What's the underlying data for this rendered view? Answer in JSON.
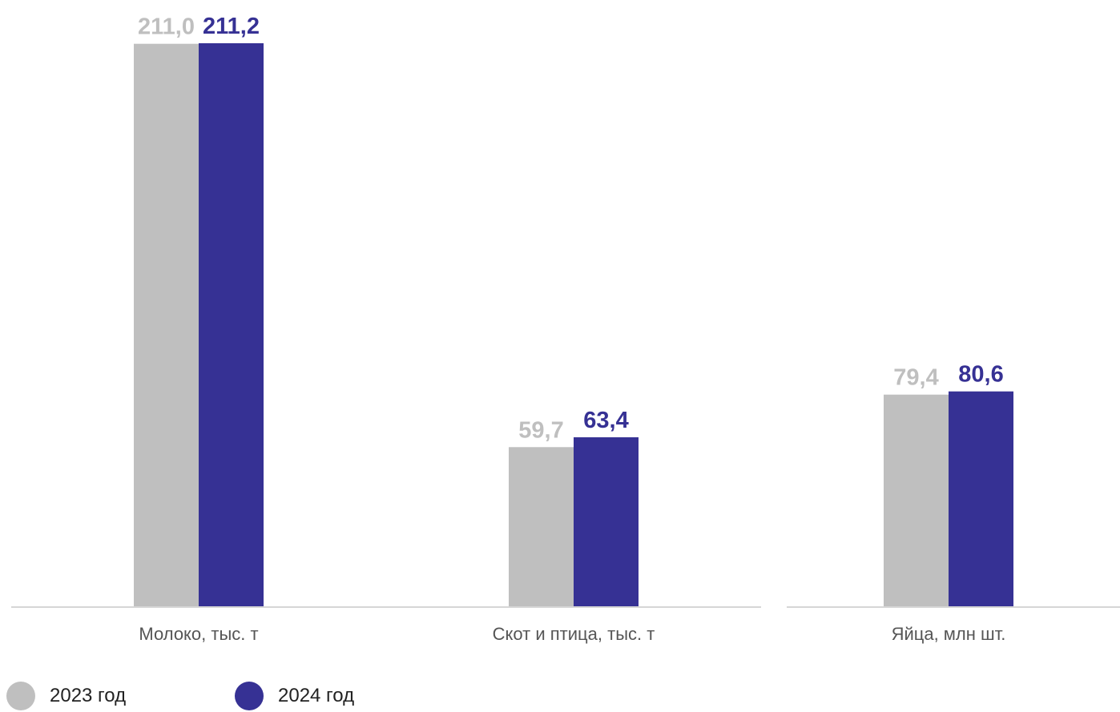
{
  "chart_data": {
    "type": "bar",
    "categories": [
      "Молоко, тыс. т",
      "Скот и птица, тыс. т",
      "Яйца, млн шт."
    ],
    "series": [
      {
        "name": "2023 год",
        "values": [
          211.0,
          59.7,
          79.4
        ],
        "labels": [
          "211,0",
          "59,7",
          "79,4"
        ],
        "color": "#bfbfbf"
      },
      {
        "name": "2024 год",
        "values": [
          211.2,
          63.4,
          80.6
        ],
        "labels": [
          "211,2",
          "63,4",
          "80,6"
        ],
        "color": "#363194"
      }
    ],
    "ylim": [
      0,
      211.2
    ],
    "grid": false,
    "legend_position": "bottom-left",
    "colors": {
      "axis": "#c8c8c8",
      "category_text": "#555555",
      "legend_text": "#222222"
    }
  }
}
